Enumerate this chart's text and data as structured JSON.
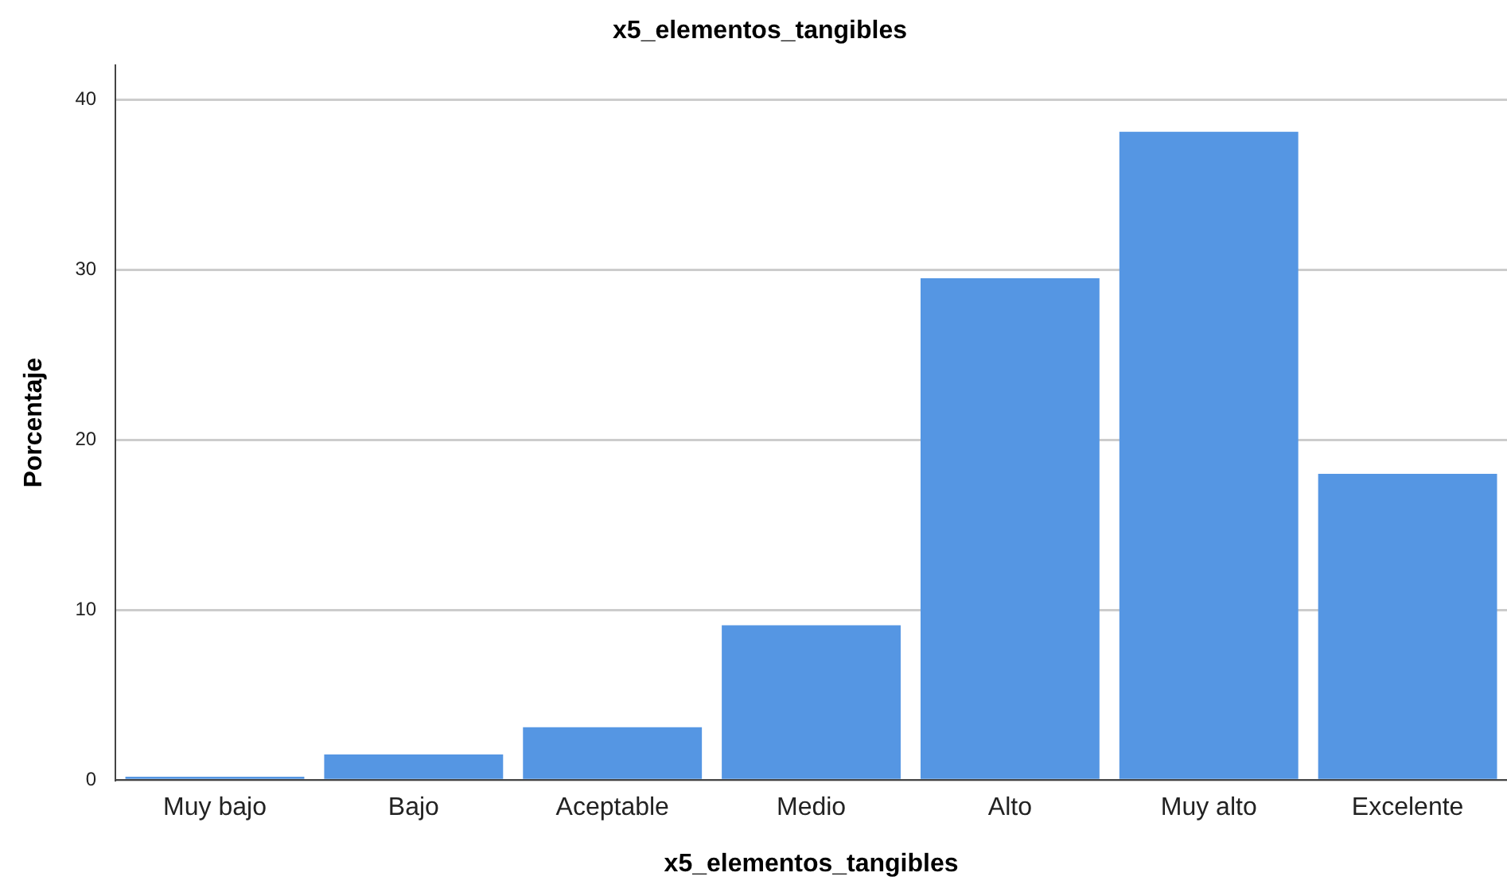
{
  "chart_data": {
    "type": "bar",
    "title": "x5_elementos_tangibles",
    "xlabel": "x5_elementos_tangibles",
    "ylabel": "Porcentaje",
    "categories": [
      "Muy bajo",
      "Bajo",
      "Aceptable",
      "Medio",
      "Alto",
      "Muy alto",
      "Excelente"
    ],
    "values": [
      0.2,
      1.5,
      3.1,
      9.1,
      29.5,
      38.1,
      18.0
    ],
    "color": "#5596e3",
    "ylim": [
      0,
      42
    ],
    "yticks": [
      0,
      10,
      20,
      30,
      40
    ],
    "grid": "y"
  }
}
